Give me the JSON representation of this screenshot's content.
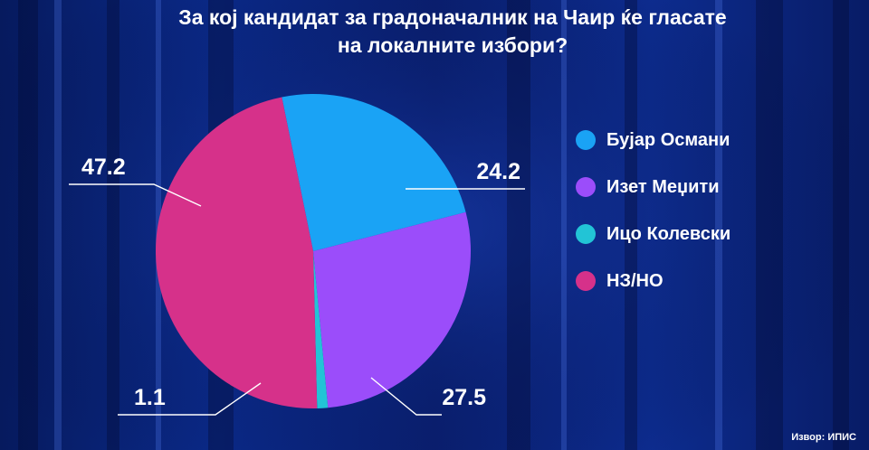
{
  "title_lines": [
    "За кој кандидат за градоначалник на Чаир ќе гласате",
    "на локалните избори?"
  ],
  "source": "Извор: ИПИС",
  "chart_data": {
    "type": "pie",
    "legend_position": "right",
    "slices": [
      {
        "label": "Бујар Османи",
        "value": 24.2,
        "value_label": "24.2",
        "color": "#1aa3f5"
      },
      {
        "label": "Изет Меџити",
        "value": 27.5,
        "value_label": "27.5",
        "color": "#9b4dfa"
      },
      {
        "label": "Ицо Колевски",
        "value": 1.1,
        "value_label": "1.1",
        "color": "#22c4d6"
      },
      {
        "label": "НЗ/НО",
        "value": 47.2,
        "value_label": "47.2",
        "color": "#d6318a"
      }
    ]
  }
}
